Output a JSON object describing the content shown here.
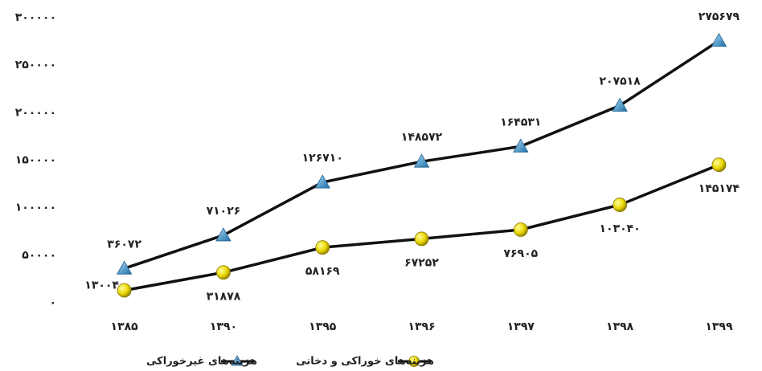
{
  "chart_data": {
    "type": "line",
    "categories": [
      "۱۳۸۵",
      "۱۳۹۰",
      "۱۳۹۵",
      "۱۳۹۶",
      "۱۳۹۷",
      "۱۳۹۸",
      "۱۳۹۹"
    ],
    "series": [
      {
        "name": "هزینه‌های غیرخوراکی",
        "color": "#3a8fc8",
        "marker": "triangle",
        "values": [
          36072,
          71026,
          126710,
          148572,
          164531,
          207518,
          275679
        ],
        "value_labels": [
          "۳۶۰۷۲",
          "۷۱۰۲۶",
          "۱۲۶۷۱۰",
          "۱۴۸۵۷۲",
          "۱۶۴۵۳۱",
          "۲۰۷۵۱۸",
          "۲۷۵۶۷۹"
        ]
      },
      {
        "name": "هزینه‌های خوراکی و دخانی",
        "color": "#e8d400",
        "marker": "circle",
        "values": [
          13004,
          31878,
          58169,
          67252,
          76905,
          103040,
          145174
        ],
        "value_labels": [
          "۱۳۰۰۴",
          "۳۱۸۷۸",
          "۵۸۱۶۹",
          "۶۷۲۵۲",
          "۷۶۹۰۵",
          "۱۰۳۰۴۰",
          "۱۴۵۱۷۴"
        ]
      }
    ],
    "ylim": [
      0,
      300000
    ],
    "yticks": [
      {
        "value": 0,
        "label": "۰"
      },
      {
        "value": 50000,
        "label": "۵۰۰۰۰"
      },
      {
        "value": 100000,
        "label": "۱۰۰۰۰۰"
      },
      {
        "value": 150000,
        "label": "۱۵۰۰۰۰"
      },
      {
        "value": 200000,
        "label": "۲۰۰۰۰۰"
      },
      {
        "value": 250000,
        "label": "۲۵۰۰۰۰"
      },
      {
        "value": 300000,
        "label": "۳۰۰۰۰۰"
      }
    ],
    "grid": false,
    "legend": "bottom"
  }
}
